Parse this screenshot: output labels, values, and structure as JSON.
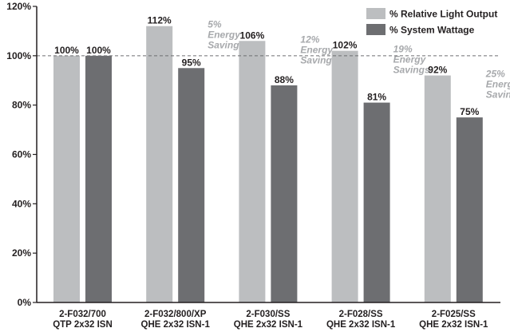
{
  "chart_data": {
    "type": "bar",
    "categories": [
      [
        "2-F032/700",
        "QTP 2x32 ISN"
      ],
      [
        "2-F032/800/XP",
        "QHE 2x32 ISN-1"
      ],
      [
        "2-F030/SS",
        "QHE 2x32 ISN-1"
      ],
      [
        "2-F028/SS",
        "QHE 2x32 ISN-1"
      ],
      [
        "2-F025/SS",
        "QHE 2x32 ISN-1"
      ]
    ],
    "series": [
      {
        "name": "% Relative Light Output",
        "color": "#bcbec0",
        "values": [
          100,
          112,
          106,
          102,
          92
        ],
        "labels": [
          "100%",
          "112%",
          "106%",
          "102%",
          "92%"
        ]
      },
      {
        "name": "% System Wattage",
        "color": "#6d6e71",
        "values": [
          100,
          95,
          88,
          81,
          75
        ],
        "labels": [
          "100%",
          "95%",
          "88%",
          "81%",
          "75%"
        ]
      }
    ],
    "annotations": [
      null,
      [
        "5%",
        "Energy",
        "Savings"
      ],
      [
        "12%",
        "Energy",
        "Savings"
      ],
      [
        "19%",
        "Energy",
        "Savings"
      ],
      [
        "25%",
        "Energy",
        "Savings"
      ]
    ],
    "ylim": [
      0,
      120
    ],
    "yticks": [
      0,
      20,
      40,
      60,
      80,
      100,
      120
    ],
    "ytick_labels": [
      "0%",
      "20%",
      "40%",
      "60%",
      "80%",
      "100%",
      "120%"
    ],
    "reference_line": 100,
    "legend_position": "top-right",
    "grid": false,
    "title": "",
    "xlabel": "",
    "ylabel": ""
  }
}
